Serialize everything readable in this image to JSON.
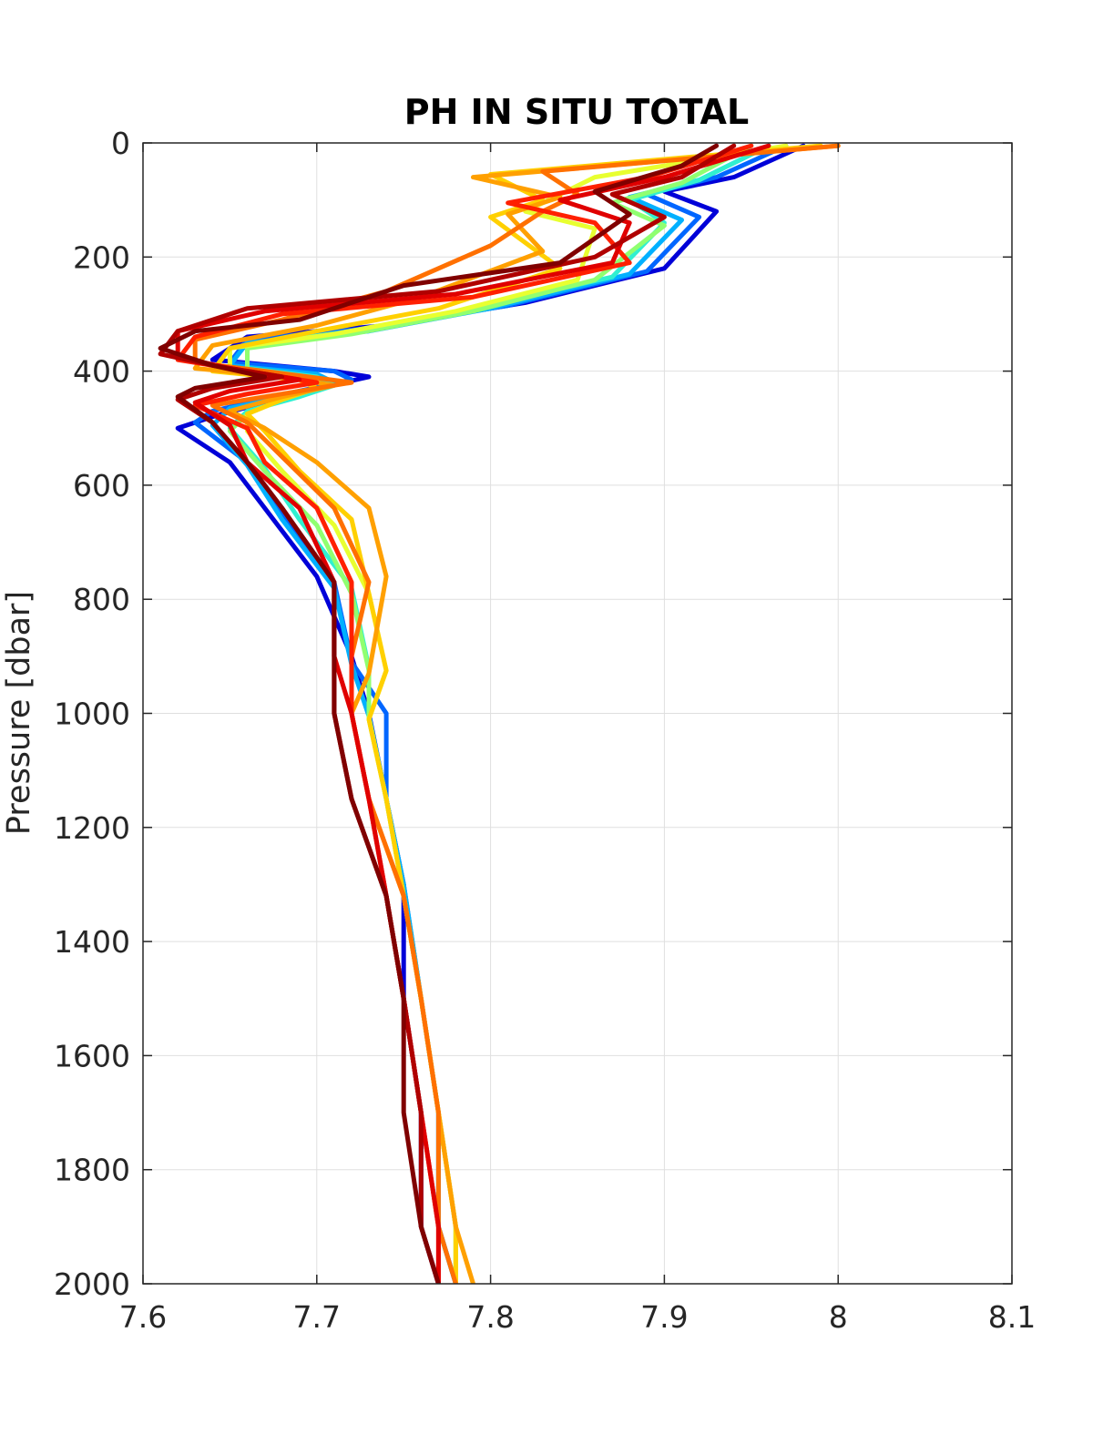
{
  "chart_data": {
    "type": "line",
    "title": "PH IN SITU TOTAL",
    "xlabel": "",
    "ylabel": "Pressure [dbar]",
    "xlim": [
      7.6,
      8.1
    ],
    "ylim": [
      0,
      2000
    ],
    "y_reversed": true,
    "grid": true,
    "x_ticks": [
      "7.6",
      "7.7",
      "7.8",
      "7.9",
      "8",
      "8.1"
    ],
    "x_tick_values": [
      7.6,
      7.7,
      7.8,
      7.9,
      8.0,
      8.1
    ],
    "y_ticks": [
      "0",
      "200",
      "400",
      "600",
      "800",
      "1000",
      "1200",
      "1400",
      "1600",
      "1800",
      "2000"
    ],
    "y_tick_values": [
      0,
      200,
      400,
      600,
      800,
      1000,
      1200,
      1400,
      1600,
      1800,
      2000
    ],
    "series": [
      {
        "color": "#0000d8",
        "x": [
          7.98,
          7.94,
          7.9,
          7.93,
          7.9,
          7.82,
          7.74,
          7.66,
          7.64,
          7.71,
          7.73,
          7.7,
          7.64,
          7.62,
          7.65,
          7.67,
          7.7,
          7.72,
          7.73,
          7.74,
          7.75,
          7.75,
          7.76,
          7.76,
          7.77
        ],
        "y": [
          5,
          60,
          85,
          120,
          220,
          280,
          320,
          340,
          380,
          400,
          410,
          430,
          480,
          500,
          560,
          640,
          760,
          900,
          1000,
          1150,
          1300,
          1500,
          1700,
          1900,
          2000
        ]
      },
      {
        "color": "#0066ff",
        "x": [
          7.97,
          7.93,
          7.89,
          7.92,
          7.89,
          7.81,
          7.73,
          7.66,
          7.65,
          7.71,
          7.72,
          7.69,
          7.64,
          7.63,
          7.66,
          7.68,
          7.71,
          7.72,
          7.74,
          7.74,
          7.75,
          7.76,
          7.77,
          7.77,
          7.78
        ],
        "y": [
          5,
          60,
          90,
          130,
          225,
          285,
          325,
          345,
          385,
          400,
          415,
          435,
          470,
          490,
          560,
          650,
          770,
          910,
          1000,
          1150,
          1300,
          1500,
          1700,
          1900,
          2000
        ]
      },
      {
        "color": "#00b0ff",
        "x": [
          7.96,
          7.92,
          7.88,
          7.91,
          7.88,
          7.8,
          7.73,
          7.66,
          7.65,
          7.7,
          7.71,
          7.69,
          7.65,
          7.64,
          7.66,
          7.68,
          7.71,
          7.72,
          7.73,
          7.74,
          7.75,
          7.76,
          7.77,
          7.77,
          7.78
        ],
        "y": [
          5,
          65,
          95,
          135,
          230,
          290,
          330,
          350,
          390,
          405,
          420,
          440,
          465,
          495,
          565,
          660,
          780,
          915,
          1005,
          1150,
          1300,
          1500,
          1700,
          1900,
          2000
        ]
      },
      {
        "color": "#30f0d0",
        "x": [
          7.96,
          7.92,
          7.88,
          7.9,
          7.87,
          7.79,
          7.72,
          7.66,
          7.66,
          7.7,
          7.71,
          7.69,
          7.66,
          7.65,
          7.67,
          7.69,
          7.72,
          7.73,
          7.73,
          7.74,
          7.75,
          7.76,
          7.77,
          7.78,
          7.78
        ],
        "y": [
          5,
          65,
          100,
          140,
          235,
          290,
          330,
          355,
          395,
          410,
          425,
          445,
          470,
          500,
          570,
          660,
          780,
          920,
          1005,
          1150,
          1320,
          1500,
          1700,
          1900,
          2000
        ]
      },
      {
        "color": "#90ff70",
        "x": [
          7.95,
          7.91,
          7.87,
          7.9,
          7.86,
          7.79,
          7.72,
          7.66,
          7.66,
          7.69,
          7.7,
          7.68,
          7.66,
          7.65,
          7.67,
          7.7,
          7.72,
          7.73,
          7.73,
          7.74,
          7.75,
          7.76,
          7.77,
          7.78,
          7.78
        ],
        "y": [
          5,
          70,
          105,
          145,
          240,
          295,
          335,
          360,
          400,
          415,
          430,
          450,
          475,
          505,
          575,
          670,
          790,
          925,
          1010,
          1150,
          1320,
          1500,
          1700,
          1900,
          2000
        ]
      },
      {
        "color": "#e8ff30",
        "x": [
          7.97,
          7.86,
          7.82,
          7.86,
          7.85,
          7.78,
          7.71,
          7.65,
          7.65,
          7.69,
          7.7,
          7.68,
          7.66,
          7.66,
          7.68,
          7.71,
          7.73,
          7.74,
          7.73,
          7.74,
          7.75,
          7.76,
          7.77,
          7.78,
          7.78
        ],
        "y": [
          5,
          60,
          120,
          150,
          240,
          295,
          335,
          360,
          400,
          415,
          430,
          450,
          475,
          505,
          575,
          670,
          790,
          925,
          1010,
          1150,
          1320,
          1500,
          1700,
          1900,
          2000
        ]
      },
      {
        "color": "#ffd000",
        "x": [
          7.99,
          7.8,
          7.83,
          7.8,
          7.84,
          7.77,
          7.7,
          7.65,
          7.64,
          7.69,
          7.7,
          7.68,
          7.66,
          7.67,
          7.69,
          7.72,
          7.73,
          7.74,
          7.73,
          7.74,
          7.75,
          7.76,
          7.77,
          7.78,
          7.78
        ],
        "y": [
          5,
          55,
          100,
          130,
          220,
          290,
          330,
          360,
          400,
          415,
          430,
          450,
          475,
          505,
          575,
          660,
          790,
          925,
          1010,
          1150,
          1320,
          1500,
          1700,
          1900,
          2000
        ]
      },
      {
        "color": "#ffa000",
        "x": [
          8.0,
          7.79,
          7.84,
          7.81,
          7.83,
          7.76,
          7.7,
          7.64,
          7.63,
          7.68,
          7.71,
          7.68,
          7.65,
          7.67,
          7.7,
          7.73,
          7.74,
          7.73,
          7.72,
          7.73,
          7.75,
          7.76,
          7.77,
          7.78,
          7.79
        ],
        "y": [
          5,
          60,
          95,
          125,
          190,
          270,
          320,
          355,
          395,
          410,
          425,
          445,
          470,
          500,
          560,
          640,
          760,
          930,
          1000,
          1150,
          1320,
          1500,
          1700,
          1900,
          2000
        ]
      },
      {
        "color": "#ff7000",
        "x": [
          8.0,
          7.83,
          7.85,
          7.83,
          7.8,
          7.74,
          7.68,
          7.63,
          7.63,
          7.67,
          7.72,
          7.68,
          7.64,
          7.66,
          7.68,
          7.71,
          7.73,
          7.72,
          7.72,
          7.73,
          7.75,
          7.76,
          7.77,
          7.77,
          7.78
        ],
        "y": [
          5,
          50,
          90,
          120,
          180,
          260,
          310,
          345,
          385,
          400,
          420,
          440,
          460,
          490,
          550,
          640,
          770,
          900,
          1000,
          1150,
          1320,
          1500,
          1700,
          1900,
          2000
        ]
      },
      {
        "color": "#ff2000",
        "x": [
          7.95,
          7.89,
          7.81,
          7.86,
          7.88,
          7.79,
          7.68,
          7.63,
          7.62,
          7.66,
          7.7,
          7.66,
          7.63,
          7.66,
          7.67,
          7.7,
          7.72,
          7.72,
          7.72,
          7.73,
          7.74,
          7.75,
          7.76,
          7.77,
          7.77
        ],
        "y": [
          5,
          60,
          105,
          140,
          210,
          270,
          300,
          340,
          380,
          400,
          420,
          440,
          460,
          500,
          560,
          640,
          770,
          900,
          1000,
          1150,
          1320,
          1500,
          1700,
          1900,
          2000
        ]
      },
      {
        "color": "#e00000",
        "x": [
          7.96,
          7.9,
          7.84,
          7.88,
          7.87,
          7.78,
          7.67,
          7.62,
          7.62,
          7.65,
          7.69,
          7.65,
          7.63,
          7.65,
          7.66,
          7.69,
          7.71,
          7.71,
          7.72,
          7.73,
          7.74,
          7.75,
          7.76,
          7.77,
          7.77
        ],
        "y": [
          5,
          60,
          100,
          140,
          210,
          265,
          295,
          330,
          375,
          395,
          415,
          435,
          455,
          495,
          560,
          640,
          770,
          900,
          1000,
          1150,
          1320,
          1500,
          1700,
          1900,
          2000
        ]
      },
      {
        "color": "#b00000",
        "x": [
          7.94,
          7.91,
          7.87,
          7.9,
          7.86,
          7.77,
          7.66,
          7.62,
          7.61,
          7.64,
          7.68,
          7.64,
          7.62,
          7.64,
          7.66,
          7.68,
          7.71,
          7.71,
          7.71,
          7.72,
          7.74,
          7.75,
          7.76,
          7.76,
          7.77
        ],
        "y": [
          5,
          60,
          90,
          130,
          200,
          260,
          290,
          330,
          370,
          390,
          410,
          430,
          450,
          490,
          560,
          640,
          770,
          900,
          1000,
          1150,
          1320,
          1500,
          1700,
          1900,
          2000
        ]
      },
      {
        "color": "#800000",
        "x": [
          7.93,
          7.91,
          7.86,
          7.88,
          7.84,
          7.75,
          7.69,
          7.63,
          7.61,
          7.64,
          7.67,
          7.63,
          7.62,
          7.64,
          7.66,
          7.68,
          7.71,
          7.71,
          7.71,
          7.72,
          7.74,
          7.75,
          7.75,
          7.76,
          7.77
        ],
        "y": [
          5,
          40,
          85,
          125,
          210,
          250,
          310,
          330,
          360,
          390,
          410,
          430,
          445,
          490,
          560,
          640,
          770,
          900,
          1000,
          1150,
          1320,
          1500,
          1700,
          1900,
          2000
        ]
      }
    ]
  }
}
